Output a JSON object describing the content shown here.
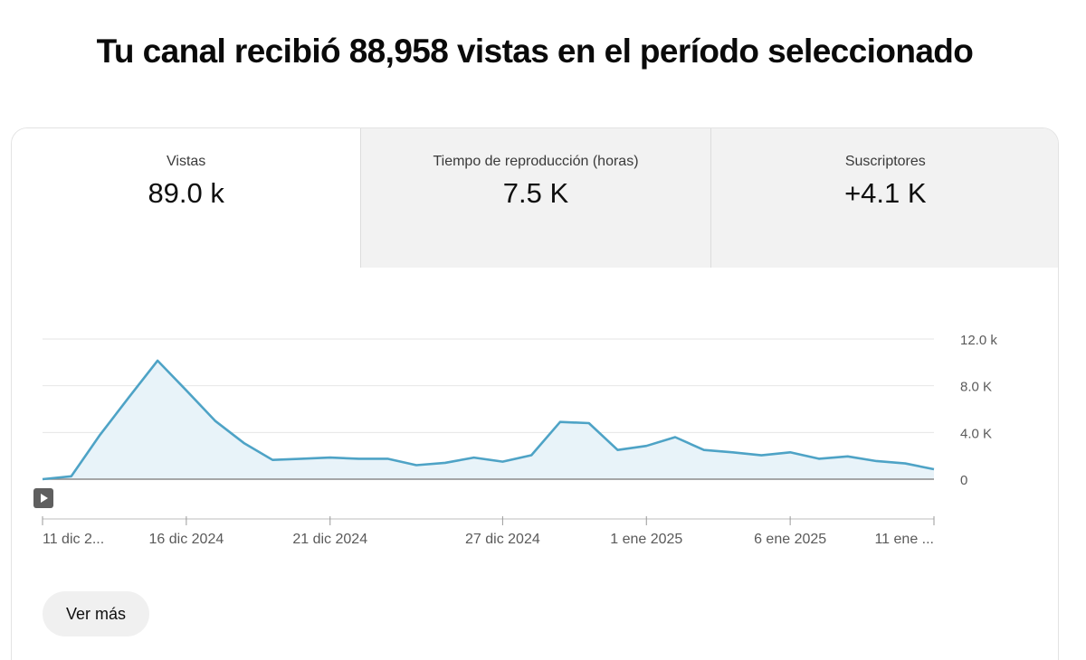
{
  "headline": "Tu canal recibió 88,958 vistas en el período seleccionado",
  "tabs": [
    {
      "label": "Vistas",
      "value": "89.0 k",
      "active": true
    },
    {
      "label": "Tiempo de reproducción (horas)",
      "value": "7.5 K",
      "active": false
    },
    {
      "label": "Suscriptores",
      "value": "+4.1 K",
      "active": false
    }
  ],
  "more_button": "Ver más",
  "colors": {
    "line": "#4ea3c6",
    "area": "#e8f3f9",
    "grid": "#e6e6e6",
    "axis": "#5a5a5a"
  },
  "chart_data": {
    "type": "area",
    "x": [
      "11 dic 2024",
      "12 dic 2024",
      "13 dic 2024",
      "14 dic 2024",
      "15 dic 2024",
      "16 dic 2024",
      "17 dic 2024",
      "18 dic 2024",
      "19 dic 2024",
      "20 dic 2024",
      "21 dic 2024",
      "22 dic 2024",
      "23 dic 2024",
      "24 dic 2024",
      "25 dic 2024",
      "26 dic 2024",
      "27 dic 2024",
      "28 dic 2024",
      "29 dic 2024",
      "30 dic 2024",
      "31 dic 2024",
      "1 ene 2025",
      "2 ene 2025",
      "3 ene 2025",
      "4 ene 2025",
      "5 ene 2025",
      "6 ene 2025",
      "7 ene 2025",
      "8 ene 2025",
      "9 ene 2025",
      "10 ene 2025",
      "11 ene 2025"
    ],
    "series": [
      {
        "values": [
          0,
          250,
          3800,
          7000,
          10150,
          7600,
          5000,
          3100,
          1650,
          1750,
          1850,
          1750,
          1750,
          1200,
          1400,
          1850,
          1500,
          2050,
          4900,
          4800,
          2500,
          2850,
          3600,
          2500,
          2300,
          2050,
          2300,
          1750,
          1950,
          1550,
          1350,
          850
        ]
      }
    ],
    "y_ticks": [
      "0",
      "4.0 K",
      "8.0 K",
      "12.0 k"
    ],
    "y_tick_values": [
      0,
      4000,
      8000,
      12000
    ],
    "x_tick_labels": [
      "11 dic 2...",
      "16 dic 2024",
      "21 dic 2024",
      "27 dic 2024",
      "1 ene 2025",
      "6 ene 2025",
      "11 ene ..."
    ],
    "x_tick_index": [
      0,
      5,
      10,
      16,
      21,
      26,
      31
    ],
    "ylim": [
      0,
      12000
    ],
    "xlabel": "",
    "ylabel": "",
    "title": "",
    "grid": true
  }
}
